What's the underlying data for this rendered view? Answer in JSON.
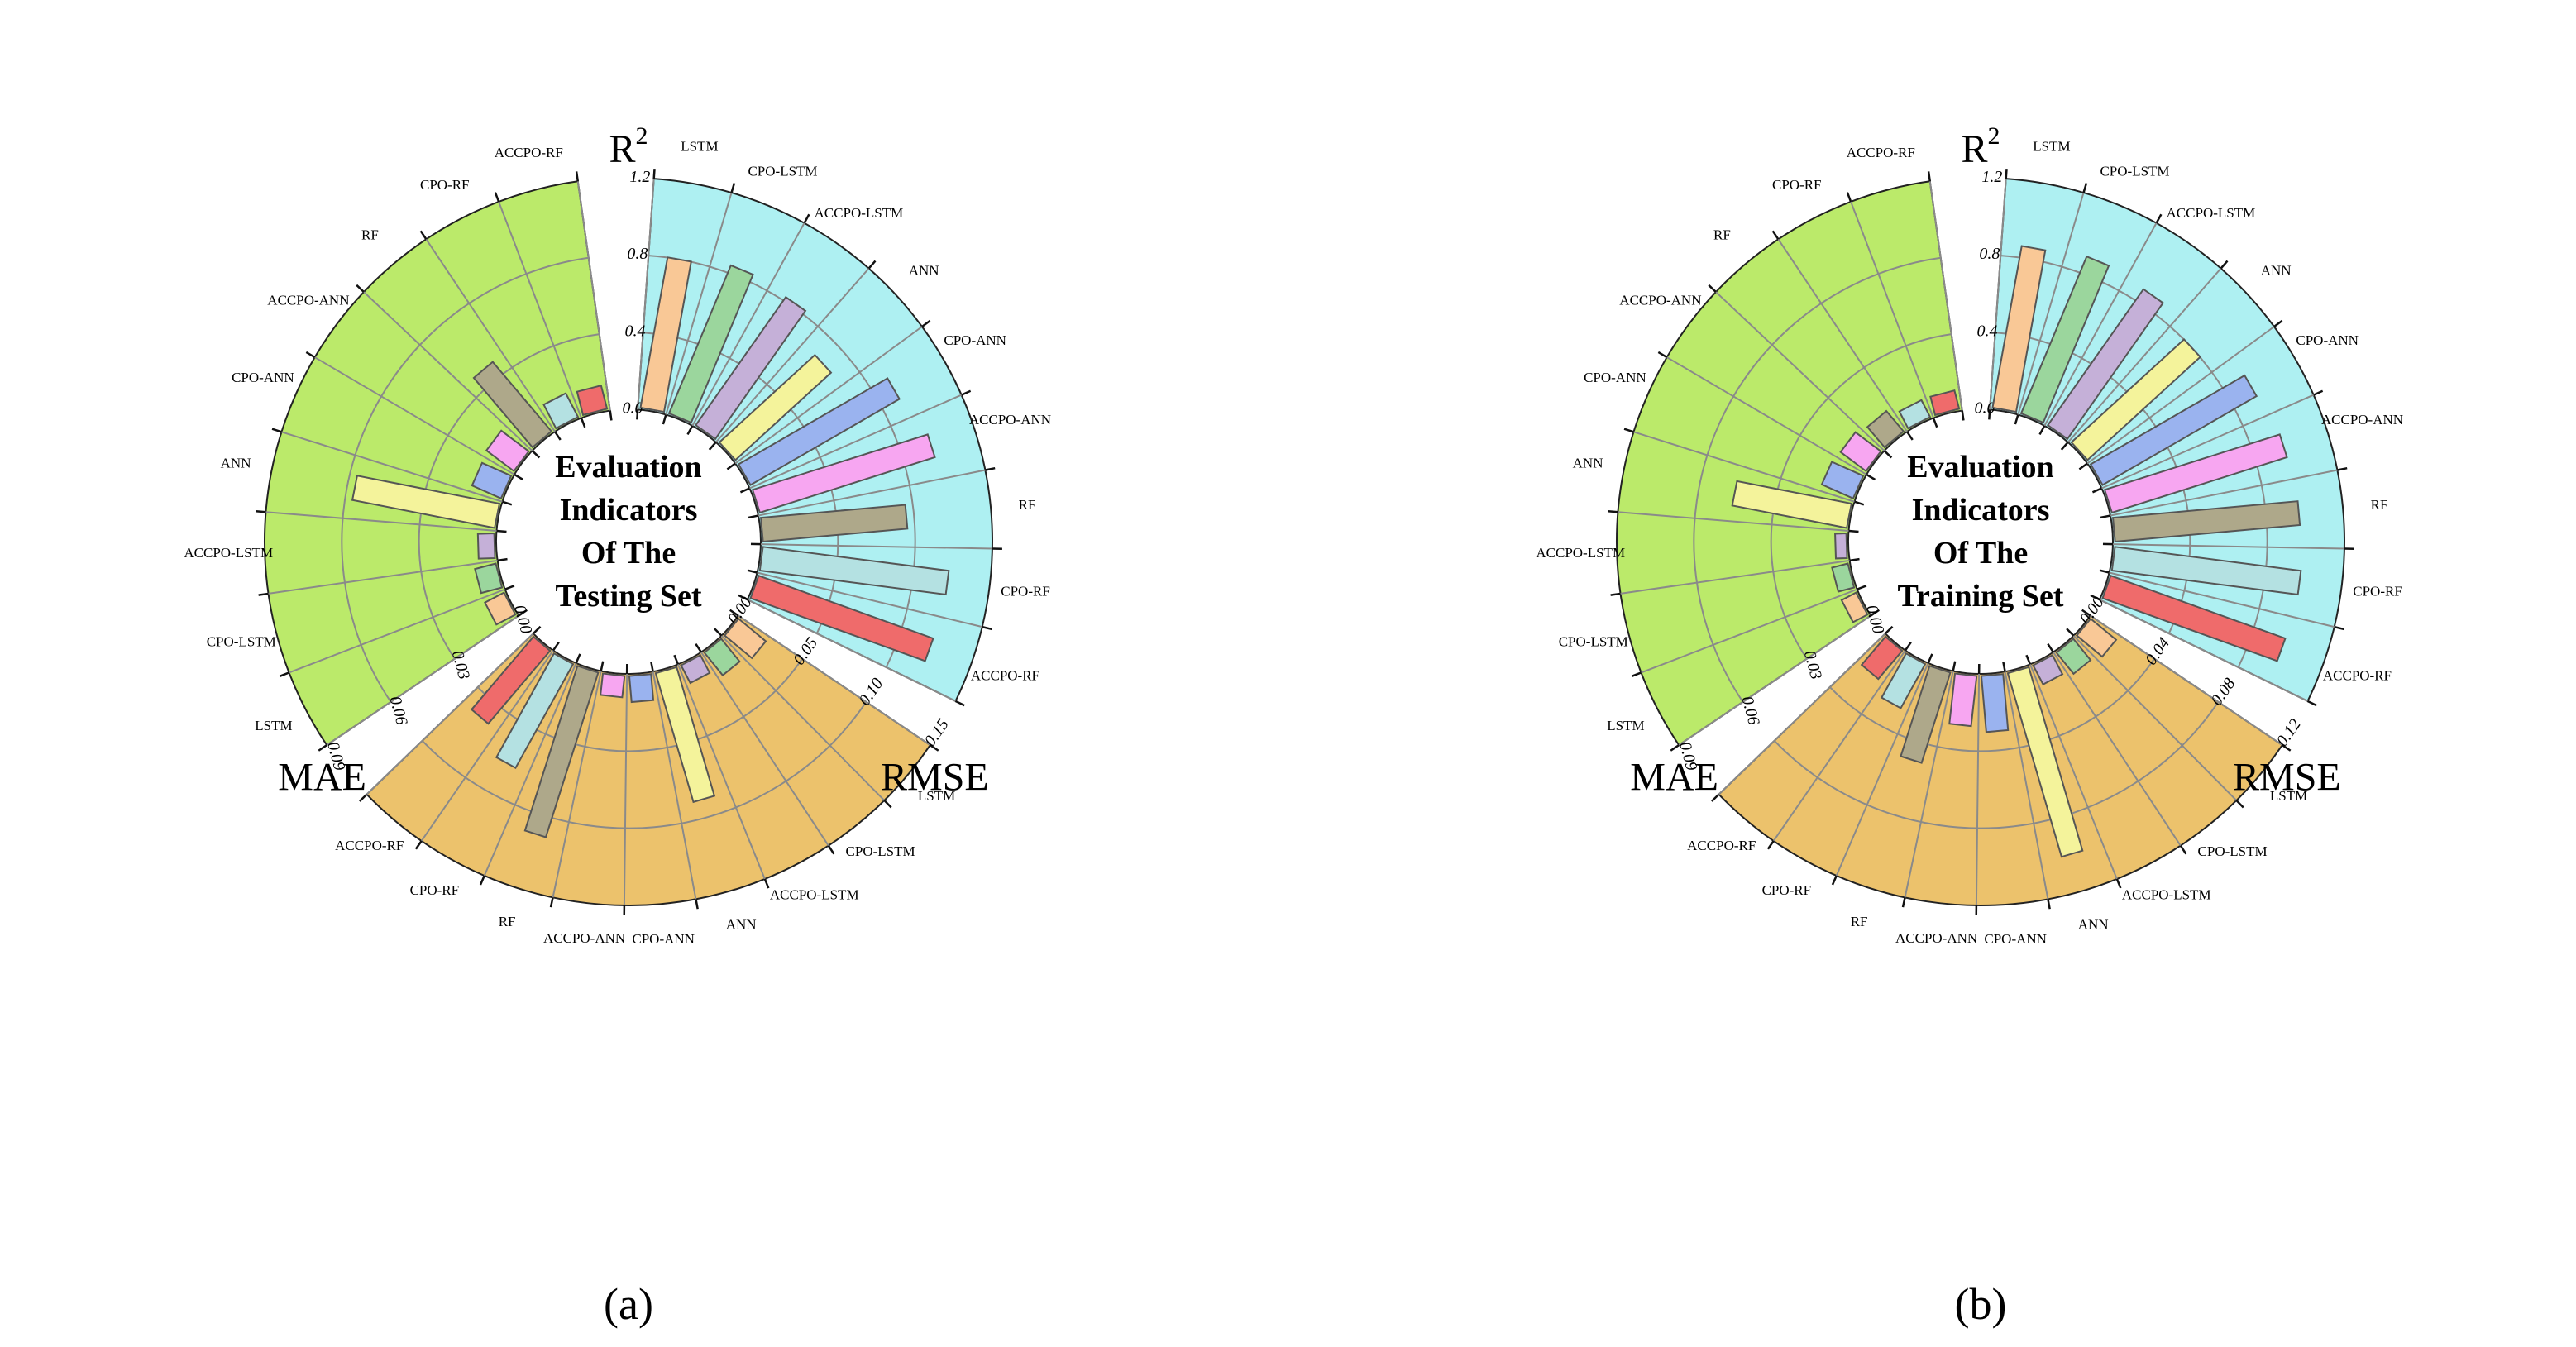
{
  "models": [
    "LSTM",
    "CPO-LSTM",
    "ACCPO-LSTM",
    "ANN",
    "CPO-ANN",
    "ACCPO-ANN",
    "RF",
    "CPO-RF",
    "ACCPO-RF"
  ],
  "colors": {
    "models": [
      "#f9c896",
      "#9bd69d",
      "#c5b0d8",
      "#f4f39b",
      "#9ab3ef",
      "#f7a6f1",
      "#aea88a",
      "#b4e1e2",
      "#ef6b6b"
    ],
    "sectors": {
      "r2": "#aef0f2",
      "rmse": "#ecc26c",
      "mae": "#bbea6a"
    },
    "grid": "#8a8a8a",
    "bar_stroke": "#555555"
  },
  "chart_data": [
    {
      "type": "radial_bar",
      "panel_label": "(a)",
      "center_label": [
        "Evaluation",
        "Indicators",
        "Of  The",
        "Testing Set"
      ],
      "metrics": {
        "r2": {
          "title": "R",
          "title_sup": "2",
          "range": [
            0,
            1.2
          ],
          "ticks": [
            "0.0",
            "0.4",
            "0.8",
            "1.2"
          ],
          "values": [
            0.8,
            0.84,
            0.82,
            0.68,
            0.9,
            0.96,
            0.76,
            0.98,
            0.97
          ]
        },
        "rmse": {
          "title": "RMSE",
          "range": [
            0,
            0.15
          ],
          "ticks": [
            "0.00",
            "0.05",
            "0.10",
            "0.15"
          ],
          "values": [
            0.024,
            0.02,
            0.014,
            0.088,
            0.018,
            0.015,
            0.113,
            0.078,
            0.063
          ]
        },
        "mae": {
          "title": "MAE",
          "range": [
            0,
            0.09
          ],
          "ticks": [
            "0.00",
            "0.03",
            "0.06",
            "0.09"
          ],
          "values": [
            0.009,
            0.009,
            0.007,
            0.057,
            0.013,
            0.014,
            0.036,
            0.011,
            0.01
          ]
        }
      }
    },
    {
      "type": "radial_bar",
      "panel_label": "(b)",
      "center_label": [
        "Evaluation",
        "Indicators",
        "Of  The",
        "Training Set"
      ],
      "metrics": {
        "r2": {
          "title": "R",
          "title_sup": "2",
          "range": [
            0,
            1.2
          ],
          "ticks": [
            "0.0",
            "0.4",
            "0.8",
            "1.2"
          ],
          "values": [
            0.86,
            0.89,
            0.87,
            0.8,
            0.93,
            0.96,
            0.97,
            0.98,
            0.97
          ]
        },
        "rmse": {
          "title": "RMSE",
          "range": [
            0,
            0.12
          ],
          "ticks": [
            "0.00",
            "0.04",
            "0.08",
            "0.12"
          ],
          "values": [
            0.018,
            0.015,
            0.012,
            0.1,
            0.03,
            0.027,
            0.05,
            0.027,
            0.02
          ]
        },
        "mae": {
          "title": "MAE",
          "range": [
            0,
            0.09
          ],
          "ticks": [
            "0.00",
            "0.03",
            "0.06",
            "0.09"
          ],
          "values": [
            0.007,
            0.007,
            0.005,
            0.046,
            0.014,
            0.013,
            0.011,
            0.008,
            0.008
          ]
        }
      }
    }
  ]
}
